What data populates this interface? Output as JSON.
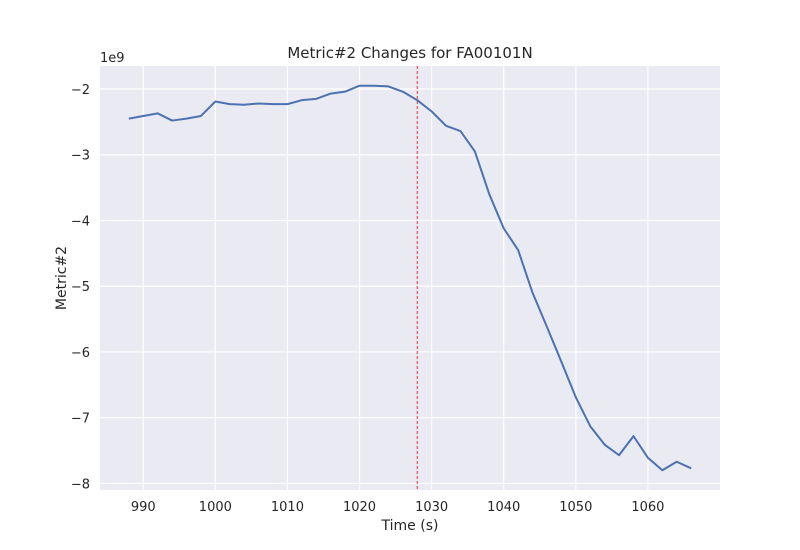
{
  "chart_data": {
    "type": "line",
    "title": "Metric#2 Changes for FA00101N",
    "xlabel": "Time (s)",
    "ylabel": "Metric#2",
    "y_offset_label": "1e9",
    "xlim": [
      984,
      1070
    ],
    "ylim": [
      -8.1,
      -1.65
    ],
    "xticks": [
      990,
      1000,
      1010,
      1020,
      1030,
      1040,
      1050,
      1060
    ],
    "yticks": [
      -2,
      -3,
      -4,
      -5,
      -6,
      -7,
      -8
    ],
    "ytick_labels": [
      "−2",
      "−3",
      "−4",
      "−5",
      "−6",
      "−7",
      "−8"
    ],
    "grid": true,
    "background": "#eaeaf2",
    "series_color": "#4c72b0",
    "marker_color": "#ff0000",
    "vertical_marker_x": 1028,
    "series": [
      {
        "x": [
          988,
          990,
          992,
          994,
          996,
          998,
          1000,
          1002,
          1004,
          1006,
          1008,
          1010,
          1012,
          1014,
          1016,
          1018,
          1020,
          1022,
          1024,
          1026,
          1028,
          1030,
          1032,
          1034,
          1036,
          1038,
          1040,
          1042,
          1044,
          1046,
          1048,
          1050,
          1052,
          1054,
          1056,
          1058,
          1060,
          1062,
          1064,
          1066
        ],
        "values": [
          -2.45,
          -2.41,
          -2.37,
          -2.48,
          -2.45,
          -2.41,
          -2.19,
          -2.23,
          -2.24,
          -2.22,
          -2.23,
          -2.23,
          -2.17,
          -2.15,
          -2.07,
          -2.04,
          -1.95,
          -1.95,
          -1.96,
          -2.04,
          -2.17,
          -2.34,
          -2.56,
          -2.64,
          -2.95,
          -3.6,
          -4.12,
          -4.45,
          -5.1,
          -5.62,
          -6.15,
          -6.69,
          -7.13,
          -7.41,
          -7.57,
          -7.28,
          -7.61,
          -7.8,
          -7.67,
          -7.77
        ]
      }
    ]
  }
}
